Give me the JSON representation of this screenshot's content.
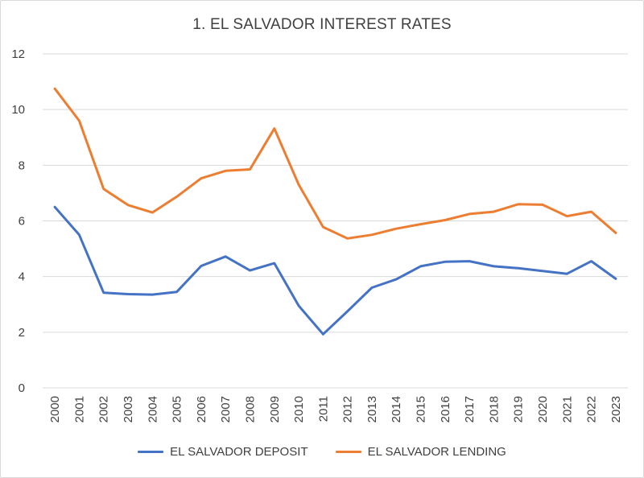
{
  "chart_data": {
    "type": "line",
    "title": "1. EL SALVADOR INTEREST RATES",
    "xlabel": "",
    "ylabel": "",
    "ylim": [
      0,
      12
    ],
    "yticks": [
      0,
      2,
      4,
      6,
      8,
      10,
      12
    ],
    "grid": true,
    "legend_position": "bottom",
    "categories": [
      "2000",
      "2001",
      "2002",
      "2003",
      "2004",
      "2005",
      "2006",
      "2007",
      "2008",
      "2009",
      "2010",
      "2011",
      "2012",
      "2013",
      "2014",
      "2015",
      "2016",
      "2017",
      "2018",
      "2019",
      "2020",
      "2021",
      "2022",
      "2023"
    ],
    "series": [
      {
        "name": "EL SALVADOR DEPOSIT",
        "color": "#4472c4",
        "values": [
          6.5,
          5.5,
          3.42,
          3.37,
          3.35,
          3.45,
          4.38,
          4.72,
          4.22,
          4.48,
          2.95,
          1.93,
          2.75,
          3.6,
          3.9,
          4.37,
          4.53,
          4.55,
          4.37,
          4.3,
          4.2,
          4.1,
          4.55,
          3.92
        ]
      },
      {
        "name": "EL SALVADOR LENDING",
        "color": "#ed7d31",
        "values": [
          10.75,
          9.6,
          7.15,
          6.57,
          6.3,
          6.87,
          7.53,
          7.8,
          7.85,
          9.32,
          7.3,
          5.78,
          5.37,
          5.5,
          5.72,
          5.88,
          6.03,
          6.25,
          6.33,
          6.6,
          6.58,
          6.17,
          6.33,
          5.57
        ]
      }
    ]
  }
}
